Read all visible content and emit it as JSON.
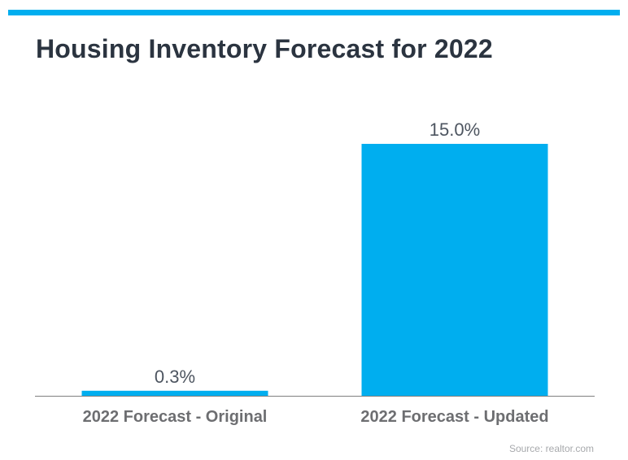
{
  "title": "Housing Inventory Forecast for 2022",
  "source": "Source: realtor.com",
  "colors": {
    "accent": "#00aeef",
    "bar": "#00aeef",
    "title": "#2b3440",
    "data_label": "#4d5560",
    "category_label": "#6d6e71",
    "axis": "#7f7f7f",
    "source": "#a7a9ac"
  },
  "chart_data": {
    "type": "bar",
    "title": "Housing Inventory Forecast for 2022",
    "categories": [
      "2022 Forecast - Original",
      "2022 Forecast - Updated"
    ],
    "values": [
      0.3,
      15.0
    ],
    "data_labels": [
      "0.3%",
      "15.0%"
    ],
    "xlabel": "",
    "ylabel": "",
    "ylim": [
      0,
      15
    ],
    "grid": false,
    "legend": "none"
  }
}
